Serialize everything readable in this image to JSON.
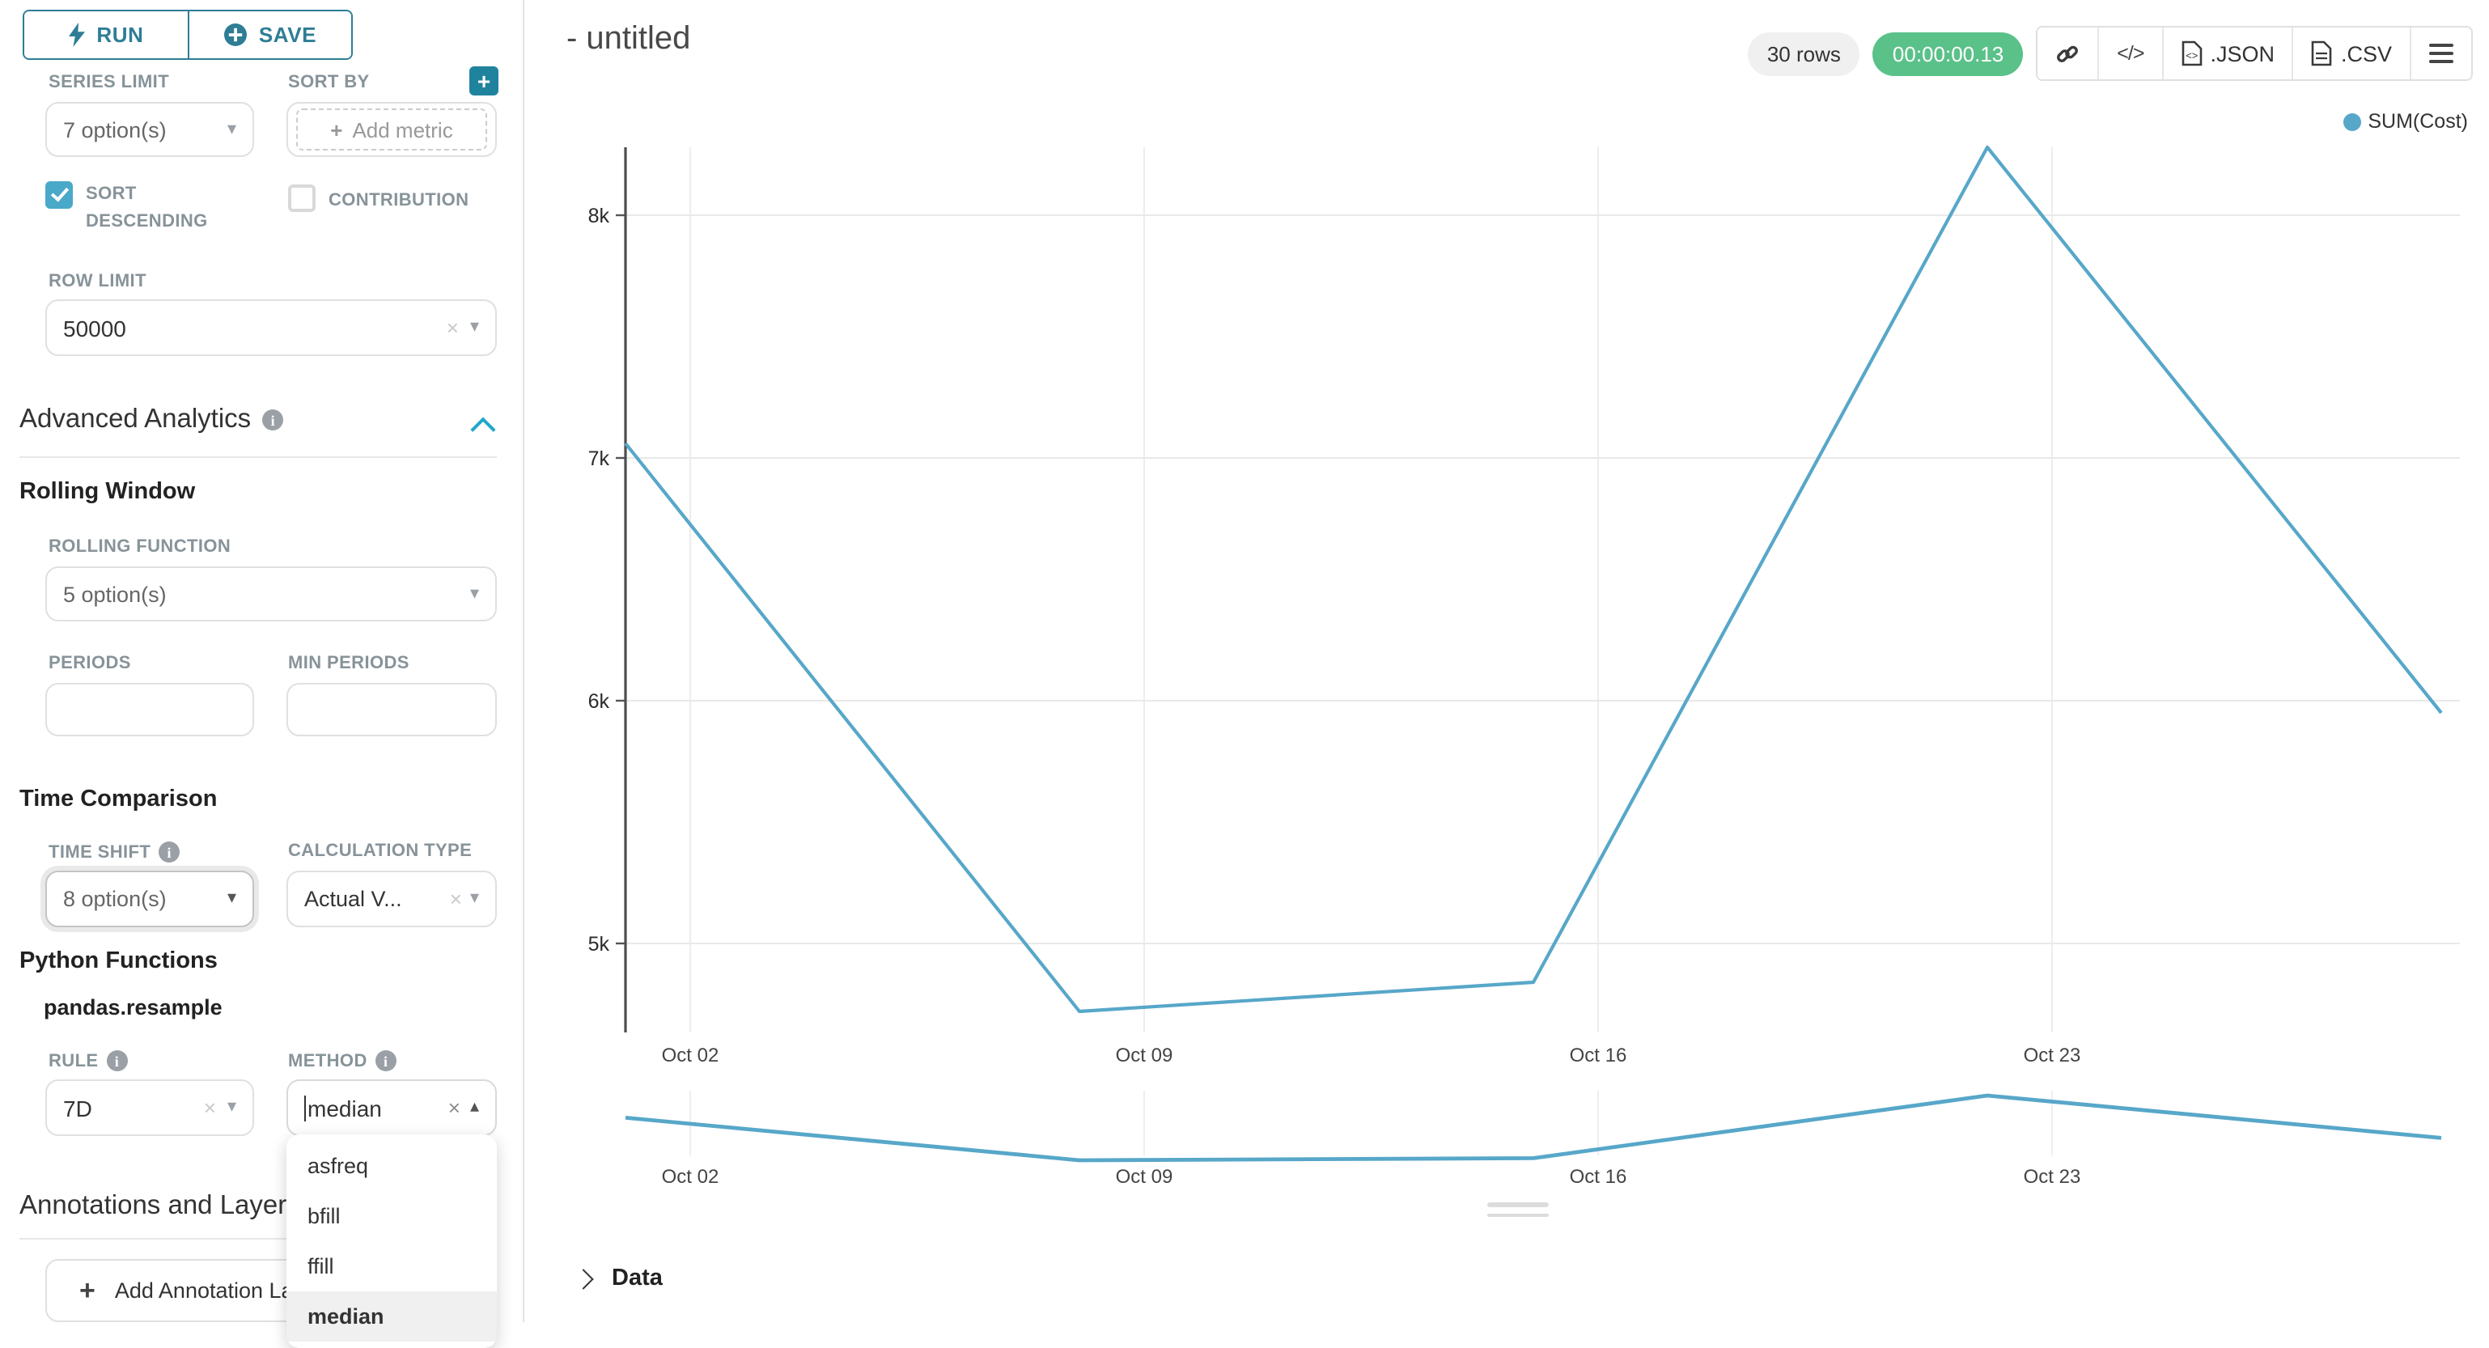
{
  "icons": {
    "caret_down": "▾",
    "caret_up": "▴",
    "clear": "×",
    "info": "i",
    "plus": "+",
    "code": "</>"
  },
  "run_panel": {
    "run_label": "RUN",
    "save_label": "SAVE"
  },
  "sidebar": {
    "series_limit_label": "SERIES LIMIT",
    "series_limit_value": "7 option(s)",
    "sort_by_label": "SORT BY",
    "add_metric_label": "Add metric",
    "sort_descending_label": "SORT DESCENDING",
    "contribution_label": "CONTRIBUTION",
    "row_limit_label": "ROW LIMIT",
    "row_limit_value": "50000",
    "advanced_analytics_title": "Advanced Analytics",
    "rolling_window": {
      "title": "Rolling Window",
      "rolling_function_label": "ROLLING FUNCTION",
      "rolling_function_value": "5 option(s)",
      "periods_label": "PERIODS",
      "min_periods_label": "MIN PERIODS"
    },
    "time_comparison": {
      "title": "Time Comparison",
      "time_shift_label": "TIME SHIFT",
      "time_shift_value": "8 option(s)",
      "calculation_type_label": "CALCULATION TYPE",
      "calculation_type_value": "Actual V..."
    },
    "python_functions": {
      "title": "Python Functions",
      "subtitle": "pandas.resample",
      "rule_label": "RULE",
      "rule_value": "7D",
      "method_label": "METHOD",
      "method_value": "median",
      "method_options": [
        "asfreq",
        "bfill",
        "ffill",
        "median"
      ],
      "method_selected": "median"
    },
    "annotations": {
      "title": "Annotations and Layers",
      "add_button_label": "Add Annotation Layer"
    }
  },
  "header": {
    "title": "- untitled",
    "rows_badge": "30 rows",
    "timer_badge": "00:00:00.13",
    "json_label": ".JSON",
    "csv_label": ".CSV"
  },
  "legend": {
    "label": "SUM(Cost)",
    "color": "#57a7c9"
  },
  "data_panel": {
    "title": "Data"
  },
  "chart_data": [
    {
      "type": "line",
      "title": "",
      "x": [
        "Oct 01",
        "Oct 08",
        "Oct 15",
        "Oct 22",
        "Oct 29"
      ],
      "series": [
        {
          "name": "SUM(Cost)",
          "color": "#57a7c9",
          "values": [
            7060,
            4720,
            4840,
            8280,
            5950
          ]
        }
      ],
      "x_tick_labels": [
        "Oct 02",
        "Oct 09",
        "Oct 16",
        "Oct 23"
      ],
      "y_tick_labels": [
        "8k",
        "7k",
        "6k",
        "5k"
      ],
      "y_tick_values": [
        8000,
        7000,
        6000,
        5000
      ],
      "ylim": [
        4600,
        8350
      ],
      "grid": true,
      "legend": [
        "SUM(Cost)"
      ],
      "legend_position": "top-right"
    },
    {
      "type": "line",
      "title": "",
      "x": [
        "Oct 01",
        "Oct 08",
        "Oct 15",
        "Oct 22",
        "Oct 29"
      ],
      "series": [
        {
          "name": "SUM(Cost)",
          "color": "#57a7c9",
          "values": [
            7060,
            4720,
            4840,
            8280,
            5950
          ]
        }
      ],
      "x_tick_labels": [
        "Oct 02",
        "Oct 09",
        "Oct 16",
        "Oct 23"
      ],
      "grid": true
    }
  ]
}
